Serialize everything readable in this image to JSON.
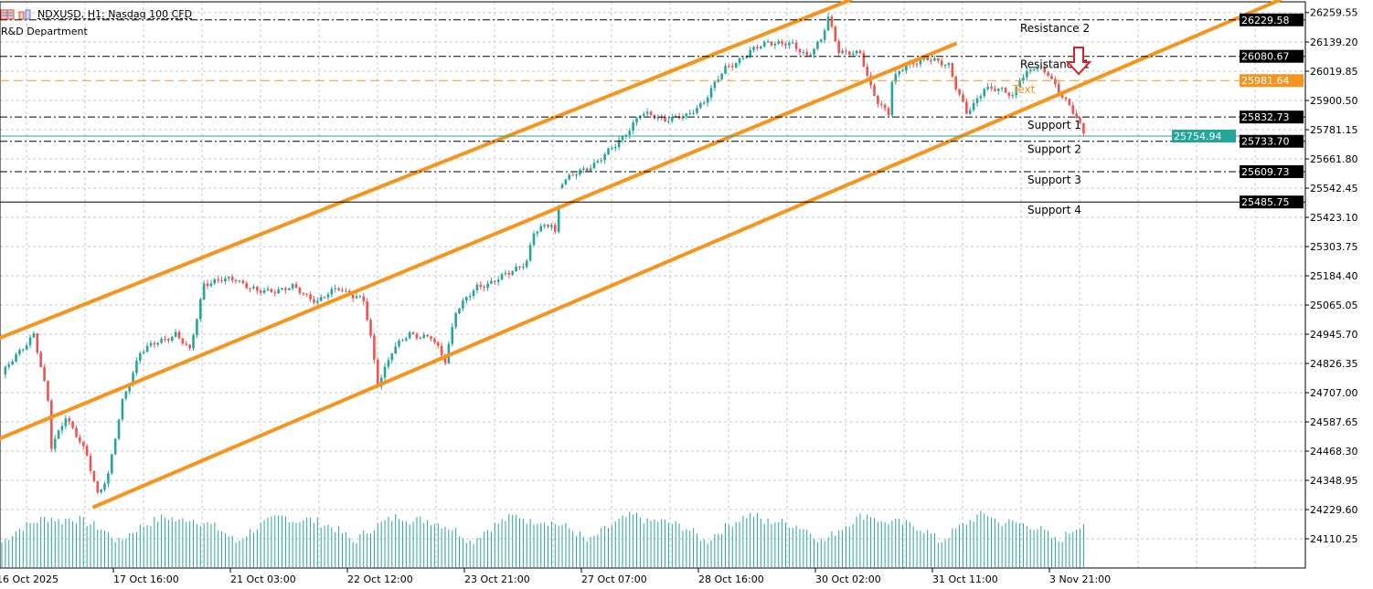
{
  "header": {
    "symbol_title": "NDXUSD, H1:  Nasdaq 100 CFD",
    "indicator_label": "R&D Department",
    "icons": [
      "list-icon",
      "objects-icon"
    ]
  },
  "colors": {
    "bull": "#26a69a",
    "bear": "#ef5350",
    "channel": "#f7941d",
    "volume": "#26a69a",
    "grid": "#c8c8c8",
    "level_line": "#000000",
    "bid_line": "#f7941d",
    "ask_line": "#26a69a",
    "arrow": "#e02020"
  },
  "chart_data": {
    "type": "candlestick",
    "symbol": "NDXUSD",
    "timeframe": "H1",
    "ylim": [
      24050,
      26265
    ],
    "y_ticks": [
      "26259.55",
      "26139.20",
      "26019.85",
      "25900.50",
      "25781.15",
      "25661.80",
      "25542.45",
      "25423.10",
      "25303.75",
      "25184.40",
      "25065.05",
      "24945.70",
      "24826.35",
      "24707.00",
      "24587.65",
      "24468.30",
      "24348.95",
      "24229.60",
      "24110.25"
    ],
    "x_ticks": [
      "16 Oct 2025",
      "17 Oct 16:00",
      "21 Oct 03:00",
      "22 Oct 12:00",
      "23 Oct 21:00",
      "27 Oct 07:00",
      "28 Oct 16:00",
      "30 Oct 02:00",
      "31 Oct 11:00",
      "3 Nov 21:00"
    ],
    "grid": true,
    "approx_close_path": [
      [
        0,
        24781
      ],
      [
        9,
        24949
      ],
      [
        13,
        24670
      ],
      [
        14,
        24483
      ],
      [
        18,
        24614
      ],
      [
        24,
        24446
      ],
      [
        27,
        24297
      ],
      [
        30,
        24371
      ],
      [
        34,
        24670
      ],
      [
        39,
        24875
      ],
      [
        49,
        24949
      ],
      [
        53,
        24875
      ],
      [
        57,
        25154
      ],
      [
        66,
        25173
      ],
      [
        72,
        25117
      ],
      [
        82,
        25136
      ],
      [
        89,
        25080
      ],
      [
        95,
        25136
      ],
      [
        102,
        25080
      ],
      [
        104,
        24931
      ],
      [
        106,
        24744
      ],
      [
        110,
        24875
      ],
      [
        115,
        24949
      ],
      [
        121,
        24931
      ],
      [
        125,
        24837
      ],
      [
        128,
        25043
      ],
      [
        134,
        25136
      ],
      [
        143,
        25192
      ],
      [
        148,
        25248
      ],
      [
        150,
        25360
      ],
      [
        155,
        25397
      ],
      [
        156,
        25360
      ],
      [
        158,
        25572
      ],
      [
        165,
        25621
      ],
      [
        173,
        25714
      ],
      [
        180,
        25845
      ],
      [
        187,
        25826
      ],
      [
        193,
        25833
      ],
      [
        198,
        25900
      ],
      [
        204,
        26031
      ],
      [
        210,
        26087
      ],
      [
        216,
        26143
      ],
      [
        223,
        26124
      ],
      [
        227,
        26087
      ],
      [
        231,
        26143
      ],
      [
        233,
        26236
      ],
      [
        236,
        26106
      ],
      [
        242,
        26087
      ],
      [
        245,
        25956
      ],
      [
        247,
        25900
      ],
      [
        250,
        25845
      ],
      [
        251,
        25975
      ],
      [
        255,
        26050
      ],
      [
        260,
        26068
      ],
      [
        267,
        26050
      ],
      [
        269,
        25956
      ],
      [
        272,
        25845
      ],
      [
        274,
        25882
      ],
      [
        277,
        25956
      ],
      [
        282,
        25938
      ],
      [
        285,
        25919
      ],
      [
        287,
        25994
      ],
      [
        291,
        26031
      ],
      [
        295,
        26012
      ],
      [
        299,
        25919
      ],
      [
        303,
        25826
      ],
      [
        305,
        25770
      ]
    ],
    "levels": [
      {
        "label": "Resistance 2",
        "price": "26229.58",
        "style": "dash-dot"
      },
      {
        "label": "Resistance 1",
        "price": "26080.67",
        "style": "dash-dot"
      },
      {
        "label": "Support 1",
        "price": "25832.73",
        "style": "dash-dot"
      },
      {
        "label": "Support 2",
        "price": "25733.70",
        "style": "dash-dot"
      },
      {
        "label": "Support 3",
        "price": "25609.73",
        "style": "dash-dot"
      },
      {
        "label": "Support 4",
        "price": "25485.75",
        "style": "solid"
      }
    ],
    "bid": {
      "price": "25981.64",
      "label": "Text"
    },
    "ask": {
      "price": "25754.94"
    },
    "channel_lines": 3,
    "signal": "sell-arrow"
  }
}
